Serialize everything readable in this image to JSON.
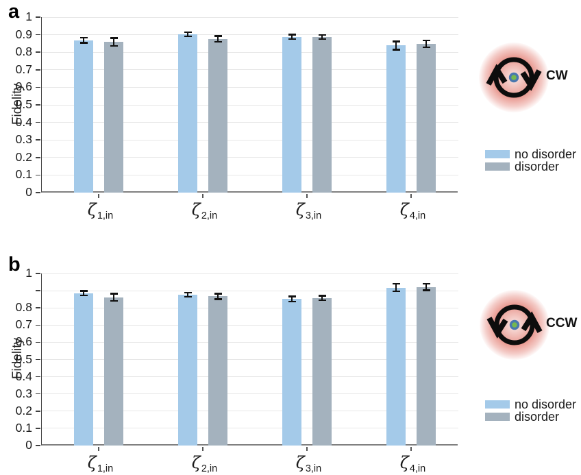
{
  "figure": {
    "panels": [
      {
        "id": "a",
        "letter": "a",
        "ylabel": "Fidelity",
        "yticks": [
          "0",
          "0.1",
          "0.2",
          "0.3",
          "0.4",
          "0.5",
          "0.6",
          "0.7",
          "0.8",
          "0.9",
          "1"
        ],
        "hidden_ytick_labels": [],
        "categories": [
          {
            "symbol": "ζ",
            "subscript": "1,in"
          },
          {
            "symbol": "ζ",
            "subscript": "2,in"
          },
          {
            "symbol": "ζ",
            "subscript": "3,in"
          },
          {
            "symbol": "ζ",
            "subscript": "4,in"
          }
        ],
        "rotation_label": "CW",
        "legend_labels": [
          "no disorder",
          "disorder"
        ]
      },
      {
        "id": "b",
        "letter": "b",
        "ylabel": "Fidelity",
        "yticks": [
          "0",
          "0.1",
          "0.2",
          "0.3",
          "0.4",
          "0.5",
          "0.6",
          "0.7",
          "0.8",
          "0.9",
          "1"
        ],
        "hidden_ytick_labels": [
          "0.9"
        ],
        "categories": [
          {
            "symbol": "ζ",
            "subscript": "1,in"
          },
          {
            "symbol": "ζ",
            "subscript": "2,in"
          },
          {
            "symbol": "ζ",
            "subscript": "3,in"
          },
          {
            "symbol": "ζ",
            "subscript": "4,in"
          }
        ],
        "rotation_label": "CCW",
        "legend_labels": [
          "no disorder",
          "disorder"
        ]
      }
    ],
    "colors": {
      "no_disorder": "#A4CAE9",
      "disorder": "#A4B2BE",
      "gridline": "#E7E7E7",
      "axis": "#808080",
      "spine": "#404040",
      "error_bar": "#111111",
      "glow": "#E27B70",
      "dot_outer": "#4A77AE",
      "dot_inner": "#76B84F"
    }
  },
  "chart_data": [
    {
      "type": "bar",
      "panel": "a",
      "rotation": "CW",
      "categories": [
        "ζ1,in",
        "ζ2,in",
        "ζ3,in",
        "ζ4,in"
      ],
      "series": [
        {
          "name": "no disorder",
          "color": "#A4CAE9",
          "values": [
            0.868,
            0.902,
            0.888,
            0.838
          ],
          "errors": [
            0.015,
            0.012,
            0.013,
            0.024
          ]
        },
        {
          "name": "disorder",
          "color": "#A4B2BE",
          "values": [
            0.858,
            0.876,
            0.887,
            0.848
          ],
          "errors": [
            0.023,
            0.016,
            0.012,
            0.02
          ]
        }
      ],
      "ylabel": "Fidelity",
      "ylim": [
        0,
        1
      ],
      "ytick_step": 0.1,
      "grid": true,
      "legend_position": "right"
    },
    {
      "type": "bar",
      "panel": "b",
      "rotation": "CCW",
      "categories": [
        "ζ1,in",
        "ζ2,in",
        "ζ3,in",
        "ζ4,in"
      ],
      "series": [
        {
          "name": "no disorder",
          "color": "#A4CAE9",
          "values": [
            0.885,
            0.877,
            0.851,
            0.918
          ],
          "errors": [
            0.013,
            0.012,
            0.015,
            0.022
          ]
        },
        {
          "name": "disorder",
          "color": "#A4B2BE",
          "values": [
            0.861,
            0.867,
            0.857,
            0.922
          ],
          "errors": [
            0.021,
            0.016,
            0.013,
            0.019
          ]
        }
      ],
      "ylabel": "Fidelity",
      "ylim": [
        0,
        1
      ],
      "ytick_step": 0.1,
      "grid": true,
      "legend_position": "right"
    }
  ]
}
